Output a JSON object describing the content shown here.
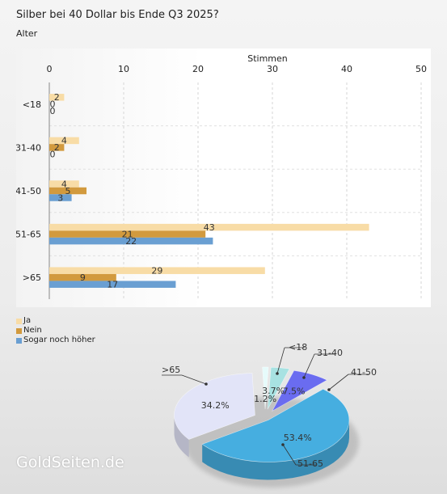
{
  "title": "Silber bei 40 Dollar bis Ende Q3 2025?",
  "subtitle": "Alter",
  "watermark": "GoldSeiten.de",
  "chart_data": [
    {
      "type": "bar",
      "orientation": "horizontal",
      "xlabel": "Stimmen",
      "xlim": [
        0,
        50
      ],
      "xticks": [
        0,
        10,
        20,
        30,
        40,
        50
      ],
      "categories": [
        "<18",
        "31-40",
        "41-50",
        "51-65",
        ">65"
      ],
      "series": [
        {
          "name": "Ja",
          "color": "#f8dca6",
          "values": [
            2,
            4,
            4,
            43,
            29
          ]
        },
        {
          "name": "Nein",
          "color": "#d29a3e",
          "values": [
            0,
            2,
            5,
            21,
            9
          ]
        },
        {
          "name": "Sogar noch höher",
          "color": "#6a9fd2",
          "values": [
            0,
            0,
            3,
            22,
            17
          ]
        }
      ],
      "grid": true,
      "legend": "bottom-left"
    },
    {
      "type": "pie",
      "style": "3d-exploded",
      "slices": [
        {
          "label": "<18",
          "value": 1.2,
          "value_label": "1.2%",
          "color": "#e6fbfb"
        },
        {
          "label": "31-40",
          "value": 3.7,
          "value_label": "3.7%",
          "color": "#a8e2e2"
        },
        {
          "label": "41-50",
          "value": 7.5,
          "value_label": "7.5%",
          "color": "#6a6cf0"
        },
        {
          "label": "51-65",
          "value": 53.4,
          "value_label": "53.4%",
          "color": "#46aee0"
        },
        {
          "label": ">65",
          "value": 34.2,
          "value_label": "34.2%",
          "color": "#e2e4f8"
        }
      ]
    }
  ]
}
